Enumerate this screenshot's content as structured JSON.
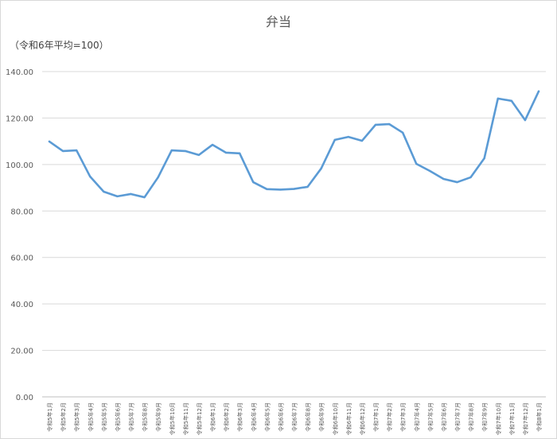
{
  "chart_data": {
    "type": "line",
    "title": "弁当",
    "unit_label": "（令和6年平均=100）",
    "categories": [
      "令和5年1月",
      "令和5年2月",
      "令和5年3月",
      "令和5年4月",
      "令和5年5月",
      "令和5年6月",
      "令和5年7月",
      "令和5年8月",
      "令和5年9月",
      "令和5年10月",
      "令和5年11月",
      "令和5年12月",
      "令和6年1月",
      "令和6年2月",
      "令和6年3月",
      "令和6年4月",
      "令和6年5月",
      "令和6年6月",
      "令和6年7月",
      "令和6年8月",
      "令和6年9月",
      "令和6年10月",
      "令和6年11月",
      "令和6年12月",
      "令和7年1月",
      "令和7年2月",
      "令和7年3月",
      "令和7年4月",
      "令和7年5月",
      "令和7年6月",
      "令和7年7月",
      "令和7年8月",
      "令和7年9月",
      "令和7年10月",
      "令和7年11月",
      "令和7年12月",
      "令和8年1月"
    ],
    "values": [
      109.9,
      105.8,
      106.1,
      94.8,
      88.3,
      86.3,
      87.3,
      85.9,
      94.5,
      106.1,
      105.8,
      104.1,
      108.5,
      105.1,
      104.8,
      92.4,
      89.4,
      89.2,
      89.5,
      90.4,
      98.3,
      110.6,
      111.9,
      110.2,
      117.1,
      117.4,
      113.7,
      100.3,
      97.2,
      93.8,
      92.4,
      94.5,
      102.7,
      128.4,
      127.4,
      119.1,
      131.5
    ],
    "ylim": [
      0,
      140
    ],
    "yticks": [
      "0.00",
      "20.00",
      "40.00",
      "60.00",
      "80.00",
      "100.00",
      "120.00",
      "140.00"
    ],
    "grid": true,
    "legend": "none",
    "line_color": "#5b9bd5"
  }
}
